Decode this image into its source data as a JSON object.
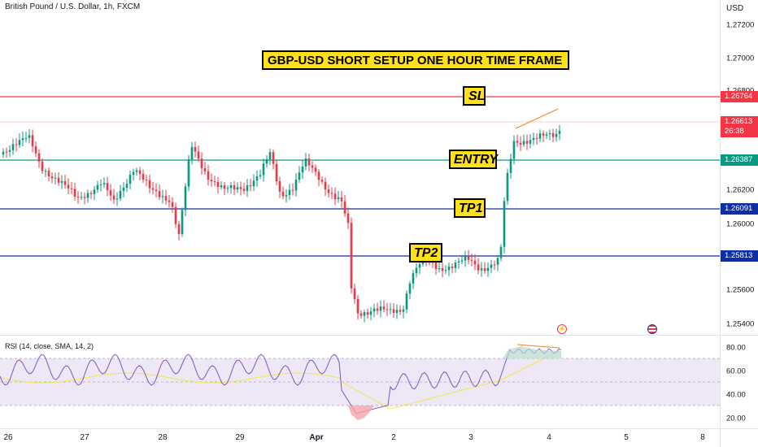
{
  "header": {
    "symbol_title": "British Pound / U.S. Dollar, 1h, FXCM",
    "currency": "USD",
    "rsi_label": "RSI (14, close, SMA, 14, 2)"
  },
  "annotations": {
    "headline": "GBP-USD SHORT SETUP ONE HOUR TIME FRAME",
    "sl": "SL",
    "entry": "ENTRY",
    "tp1": "TP1",
    "tp2": "TP2"
  },
  "price_axis": {
    "labels": [
      "1.27200",
      "1.27000",
      "1.26800",
      "1.26200",
      "1.26000",
      "1.25600",
      "1.25400"
    ]
  },
  "price_tags": {
    "sl": {
      "text": "1.26764",
      "color": "#f23645"
    },
    "current": {
      "text": "1.26613",
      "time": "26:38",
      "color": "#f23645"
    },
    "entry": {
      "text": "1.26387",
      "color": "#089981"
    },
    "tp1": {
      "text": "1.26091",
      "color": "#0d2fa6"
    },
    "tp2": {
      "text": "1.25813",
      "color": "#0d2fa6"
    }
  },
  "rsi_axis": {
    "labels": [
      "80.00",
      "60.00",
      "40.00",
      "20.00"
    ]
  },
  "time_axis": {
    "labels": [
      "26",
      "27",
      "28",
      "29",
      "Apr",
      "2",
      "3",
      "4",
      "5",
      "8"
    ]
  },
  "colors": {
    "up": "#089981",
    "down": "#f23645",
    "sl_line": "#f23645",
    "entry_line": "#089981",
    "tp_line": "#0d2fa6",
    "rsi_line": "#7e57c2",
    "rsi_ma": "#f2e84b",
    "rsi_band": "#ede7f6",
    "annotation_bg": "#ffe11a",
    "trend_line": "#f57f17"
  },
  "icons": [
    "lightning-event-icon",
    "us-flag-event-icon"
  ]
}
